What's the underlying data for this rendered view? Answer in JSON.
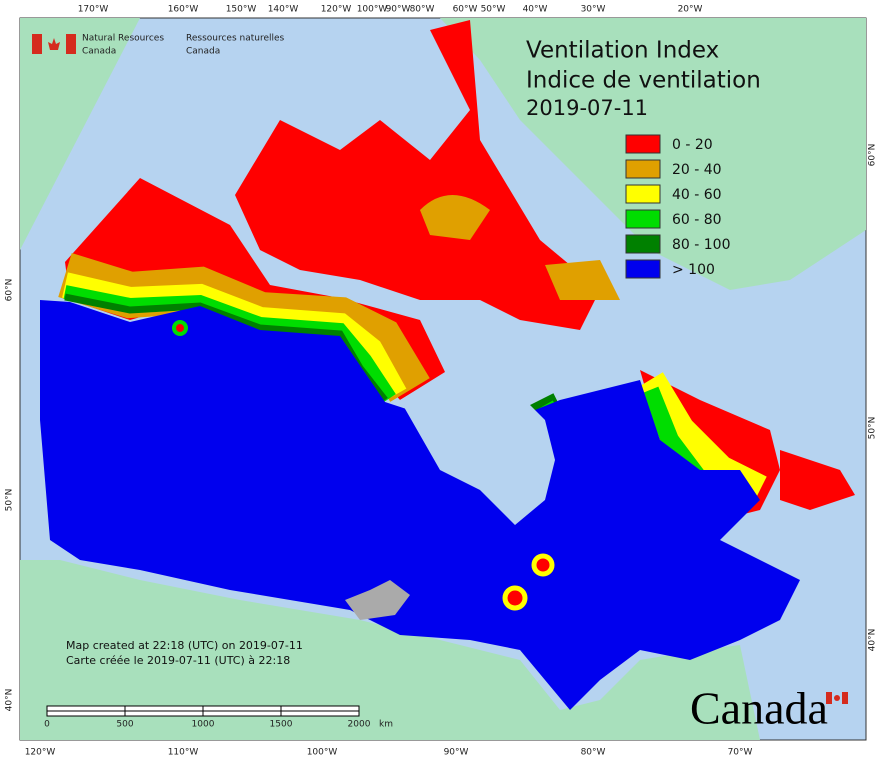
{
  "header": {
    "agency_en": "Natural Resources",
    "country_en": "Canada",
    "agency_fr": "Ressources naturelles",
    "country_fr": "Canada"
  },
  "title": {
    "line1": "Ventilation Index",
    "line2": "Indice de ventilation",
    "date": "2019-07-11"
  },
  "legend": [
    {
      "label": "0 - 20",
      "color": "#ff0000"
    },
    {
      "label": "20 - 40",
      "color": "#e0a000"
    },
    {
      "label": "40 - 60",
      "color": "#ffff00"
    },
    {
      "label": "60 - 80",
      "color": "#00dd00"
    },
    {
      "label": "80 - 100",
      "color": "#008000"
    },
    {
      "label": "> 100",
      "color": "#0000ee"
    }
  ],
  "graticule": {
    "top": [
      "170°W",
      "160°W",
      "150°W",
      "140°W",
      "120°W",
      "100°W",
      "90°W",
      "80°W",
      "60°W",
      "50°W",
      "40°W",
      "30°W",
      "20°W"
    ],
    "bottom": [
      "120°W",
      "110°W",
      "100°W",
      "90°W",
      "80°W",
      "70°W"
    ],
    "left": [
      "60°N",
      "50°N",
      "40°N"
    ],
    "right": [
      "60°N",
      "50°N",
      "40°N"
    ]
  },
  "scale_bar": {
    "labels": [
      "0",
      "500",
      "1000",
      "1500",
      "2000"
    ],
    "unit": "km"
  },
  "notes": [
    "Map created at 22:18 (UTC) on 2019-07-11",
    "Carte créée le 2019-07-11 (UTC) à 22:18"
  ],
  "wordmark": "Canada"
}
